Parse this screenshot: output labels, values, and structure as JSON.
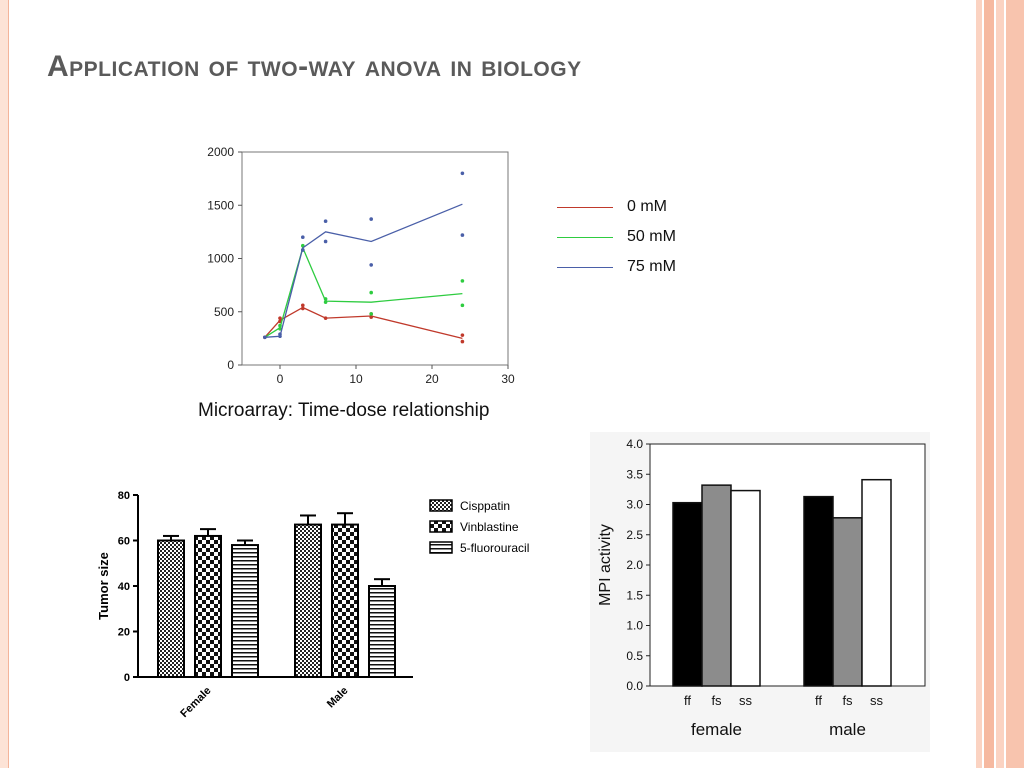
{
  "slide": {
    "title": "Application of two-way anova in biology",
    "caption": "Microarray: Time-dose relationship"
  },
  "colors": {
    "accent_peach": "#f6b9a0",
    "title_gray": "#5a5a5a",
    "series_0mM": "#c0392b",
    "series_50mM": "#2ecc40",
    "series_75mM": "#4a5fa8"
  },
  "chart_data": [
    {
      "type": "line",
      "title": "",
      "xlabel": "",
      "ylabel": "",
      "xlim": [
        -5,
        30
      ],
      "ylim": [
        0,
        2000
      ],
      "xticks": [
        0,
        10,
        20,
        30
      ],
      "yticks": [
        0,
        500,
        1000,
        1500,
        2000
      ],
      "legend_position": "right",
      "series": [
        {
          "name": "0 mM",
          "color": "#c0392b",
          "x": [
            -2,
            0,
            3,
            6,
            12,
            24
          ],
          "values": [
            260,
            420,
            540,
            440,
            460,
            250
          ],
          "points": [
            [
              -2,
              260
            ],
            [
              0,
              410
            ],
            [
              0,
              440
            ],
            [
              3,
              530
            ],
            [
              3,
              560
            ],
            [
              6,
              440
            ],
            [
              12,
              450
            ],
            [
              12,
              480
            ],
            [
              24,
              220
            ],
            [
              24,
              280
            ]
          ]
        },
        {
          "name": "50 mM",
          "color": "#2ecc40",
          "x": [
            -2,
            0,
            3,
            6,
            12,
            24
          ],
          "values": [
            260,
            350,
            1100,
            600,
            590,
            670
          ],
          "points": [
            [
              0,
              340
            ],
            [
              0,
              370
            ],
            [
              3,
              1080
            ],
            [
              3,
              1120
            ],
            [
              6,
              590
            ],
            [
              6,
              620
            ],
            [
              12,
              680
            ],
            [
              12,
              480
            ],
            [
              24,
              790
            ],
            [
              24,
              560
            ]
          ]
        },
        {
          "name": "75 mM",
          "color": "#4a5fa8",
          "x": [
            -2,
            0,
            3,
            6,
            12,
            24
          ],
          "values": [
            260,
            270,
            1100,
            1250,
            1160,
            1510
          ],
          "points": [
            [
              -2,
              260
            ],
            [
              0,
              270
            ],
            [
              0,
              290
            ],
            [
              3,
              1200
            ],
            [
              3,
              1080
            ],
            [
              6,
              1350
            ],
            [
              6,
              1160
            ],
            [
              12,
              1370
            ],
            [
              12,
              940
            ],
            [
              24,
              1800
            ],
            [
              24,
              1220
            ]
          ]
        }
      ]
    },
    {
      "type": "bar",
      "title": "",
      "xlabel": "",
      "ylabel": "Tumor size",
      "ylim": [
        0,
        80
      ],
      "yticks": [
        0,
        20,
        40,
        60,
        80
      ],
      "categories": [
        "Female",
        "Male"
      ],
      "legend_position": "right",
      "series": [
        {
          "name": "Cisppatin",
          "values": [
            60,
            67
          ],
          "errors": [
            2,
            4
          ],
          "pattern": "fine-check"
        },
        {
          "name": "Vinblastine",
          "values": [
            62,
            67
          ],
          "errors": [
            3,
            5
          ],
          "pattern": "coarse-check"
        },
        {
          "name": "5-fluorouracil",
          "values": [
            58,
            40
          ],
          "errors": [
            2,
            3
          ],
          "pattern": "horizontal-lines"
        }
      ]
    },
    {
      "type": "bar",
      "title": "",
      "xlabel": "",
      "ylabel": "MPI activity",
      "ylim": [
        0,
        4.0
      ],
      "yticks": [
        "0.0",
        "0.5",
        "1.0",
        "1.5",
        "2.0",
        "2.5",
        "3.0",
        "3.5",
        "4.0"
      ],
      "groups": [
        "female",
        "male"
      ],
      "categories": [
        "ff",
        "fs",
        "ss"
      ],
      "bar_colors": [
        "#000000",
        "#8c8c8c",
        "#ffffff"
      ],
      "series": [
        {
          "group": "female",
          "values": [
            3.03,
            3.32,
            3.23
          ]
        },
        {
          "group": "male",
          "values": [
            3.13,
            2.78,
            3.41
          ]
        }
      ]
    }
  ]
}
